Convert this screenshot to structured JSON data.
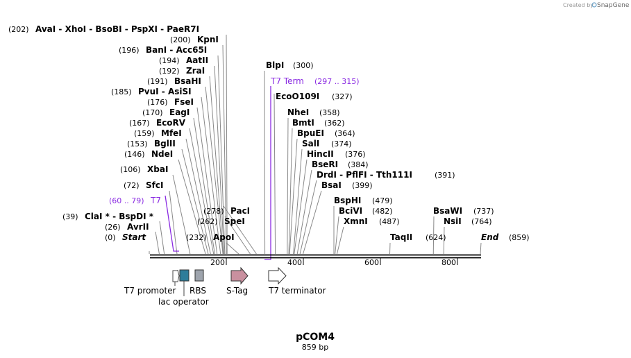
{
  "credit": {
    "prefix": "Created by",
    "brand": "SnapGene"
  },
  "map": {
    "name": "pCOM4",
    "length_label": "859 bp",
    "total_bp": 859
  },
  "enzymes": [
    {
      "label": "(0)",
      "name": "Start",
      "pos": 0,
      "italic": true
    },
    {
      "label": "(26)",
      "name": "AvrII",
      "pos": 26
    },
    {
      "label": "(39)",
      "name": "ClaI * - BspDI *",
      "pos": 39
    },
    {
      "label": "(72)",
      "name": "SfcI",
      "pos": 72
    },
    {
      "label": "(106)",
      "name": "XbaI",
      "pos": 106
    },
    {
      "label": "(146)",
      "name": "NdeI",
      "pos": 146
    },
    {
      "label": "(153)",
      "name": "BglII",
      "pos": 153
    },
    {
      "label": "(159)",
      "name": "MfeI",
      "pos": 159
    },
    {
      "label": "(167)",
      "name": "EcoRV",
      "pos": 167
    },
    {
      "label": "(170)",
      "name": "EagI",
      "pos": 170
    },
    {
      "label": "(176)",
      "name": "FseI",
      "pos": 176
    },
    {
      "label": "(185)",
      "name": "PvuI - AsiSI",
      "pos": 185
    },
    {
      "label": "(191)",
      "name": "BsaHI",
      "pos": 191
    },
    {
      "label": "(192)",
      "name": "ZraI",
      "pos": 192
    },
    {
      "label": "(194)",
      "name": "AatII",
      "pos": 194
    },
    {
      "label": "(196)",
      "name": "BanI - Acc65I",
      "pos": 196
    },
    {
      "label": "(200)",
      "name": "KpnI",
      "pos": 200
    },
    {
      "label": "(202)",
      "name": "AvaI - XhoI - BsoBI - PspXI - PaeR7I",
      "pos": 202
    },
    {
      "label": "(232)",
      "name": "ApoI",
      "pos": 232
    },
    {
      "label": "(262)",
      "name": "SpeI",
      "pos": 262
    },
    {
      "label": "(278)",
      "name": "PacI",
      "pos": 278
    },
    {
      "label": "(300)",
      "name": "BlpI",
      "pos": 300
    },
    {
      "label": "(327)",
      "name": "EcoO109I",
      "pos": 327
    },
    {
      "label": "(358)",
      "name": "NheI",
      "pos": 358
    },
    {
      "label": "(362)",
      "name": "BmtI",
      "pos": 362
    },
    {
      "label": "(364)",
      "name": "BpuEI",
      "pos": 364
    },
    {
      "label": "(374)",
      "name": "SalI",
      "pos": 374
    },
    {
      "label": "(376)",
      "name": "HincII",
      "pos": 376
    },
    {
      "label": "(384)",
      "name": "BseRI",
      "pos": 384
    },
    {
      "label": "(391)",
      "name": "DrdI - PflFI - Tth111I",
      "pos": 391
    },
    {
      "label": "(399)",
      "name": "BsaI",
      "pos": 399
    },
    {
      "label": "(479)",
      "name": "BspHI",
      "pos": 479
    },
    {
      "label": "(482)",
      "name": "BciVI",
      "pos": 482
    },
    {
      "label": "(487)",
      "name": "XmnI",
      "pos": 487
    },
    {
      "label": "(624)",
      "name": "TaqII",
      "pos": 624
    },
    {
      "label": "(737)",
      "name": "BsaWI",
      "pos": 737
    },
    {
      "label": "(764)",
      "name": "NsiI",
      "pos": 764
    },
    {
      "label": "(859)",
      "name": "End",
      "pos": 859,
      "italic": true
    }
  ],
  "primer_labels": [
    {
      "name": "T7",
      "range": "(60 .. 79)",
      "color": "#8a2be2"
    },
    {
      "name": "T7 Term",
      "range": "(297 .. 315)",
      "color": "#8a2be2"
    }
  ],
  "axis_ticks": [
    "200",
    "400",
    "600",
    "800"
  ],
  "features": [
    {
      "name": "T7 promoter",
      "icon": "promoter-arrow"
    },
    {
      "name": "lac operator",
      "icon": "teal-box",
      "color": "#2e7d9a"
    },
    {
      "name": "RBS",
      "icon": "gray-box",
      "color": "#9ea4ad"
    },
    {
      "name": "S-Tag",
      "icon": "arrow",
      "color": "#c9909f"
    },
    {
      "name": "T7 terminator",
      "icon": "outline-arrow"
    }
  ]
}
